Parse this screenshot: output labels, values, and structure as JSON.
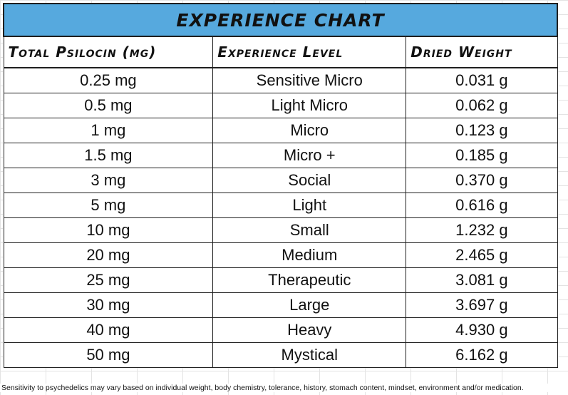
{
  "title": "EXPERIENCE CHART",
  "headers": [
    "Total Psilocin (mg)",
    "Experience Level",
    "Dried Weight"
  ],
  "rows": [
    [
      "0.25 mg",
      "Sensitive Micro",
      "0.031 g"
    ],
    [
      "0.5 mg",
      "Light Micro",
      "0.062 g"
    ],
    [
      "1 mg",
      "Micro",
      "0.123 g"
    ],
    [
      "1.5 mg",
      "Micro +",
      "0.185 g"
    ],
    [
      "3 mg",
      "Social",
      "0.370 g"
    ],
    [
      "5 mg",
      "Light",
      "0.616 g"
    ],
    [
      "10 mg",
      "Small",
      "1.232 g"
    ],
    [
      "20 mg",
      "Medium",
      "2.465 g"
    ],
    [
      "25 mg",
      "Therapeutic",
      "3.081 g"
    ],
    [
      "30 mg",
      "Large",
      "3.697 g"
    ],
    [
      "40 mg",
      "Heavy",
      "4.930 g"
    ],
    [
      "50 mg",
      "Mystical",
      "6.162 g"
    ]
  ],
  "footnote": "Sensitivity to psychedelics may vary based on individual weight, body chemistry, tolerance, history, stomach content, mindset, environment and/or medication.",
  "colors": {
    "title_background": "#56a9de",
    "border": "#1f1f1f"
  }
}
